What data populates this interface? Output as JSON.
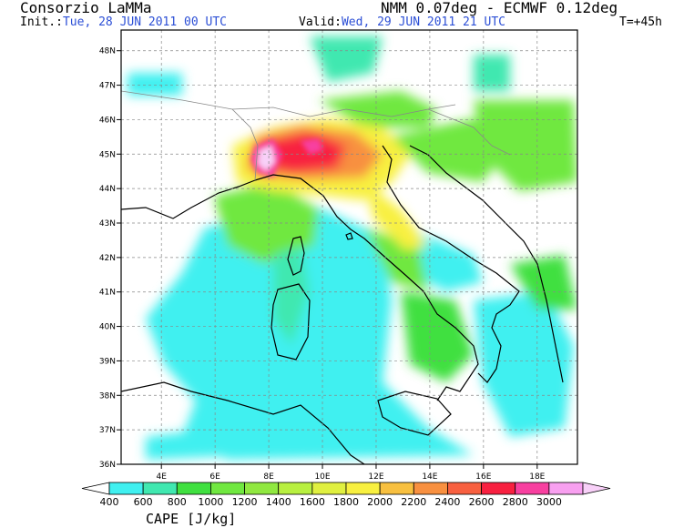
{
  "header": {
    "agency": "Consorzio LaMMa",
    "model": "NMM 0.07deg - ECMWF 0.12deg",
    "init_label": "Init.:",
    "init_value": "Tue, 28 JUN 2011  00 UTC",
    "valid_label": "Valid:",
    "valid_value": "Wed, 29 JUN 2011  21 UTC",
    "lead_time": "T=+45h"
  },
  "map": {
    "lon_range": [
      2.5,
      19.5
    ],
    "lat_range": [
      36,
      48.6
    ],
    "lon_ticks": [
      "4E",
      "6E",
      "8E",
      "10E",
      "12E",
      "14E",
      "16E",
      "18E"
    ],
    "lat_ticks": [
      "36N",
      "37N",
      "38N",
      "39N",
      "40N",
      "41N",
      "42N",
      "43N",
      "44N",
      "45N",
      "46N",
      "47N",
      "48N"
    ],
    "grid": true
  },
  "colorbar": {
    "labels": [
      "400",
      "600",
      "800",
      "1000",
      "1200",
      "1400",
      "1600",
      "1800",
      "2000",
      "2200",
      "2400",
      "2600",
      "2800",
      "3000"
    ],
    "colors": [
      "#ffffff",
      "#40f0f0",
      "#40e8b0",
      "#40e040",
      "#70e840",
      "#90e840",
      "#b8f040",
      "#e0f040",
      "#f8f040",
      "#f8c040",
      "#f89040",
      "#f86040",
      "#f82040",
      "#f840a0",
      "#f8a0f0",
      "#f8d0f8"
    ],
    "title": "CAPE [J/kg]"
  }
}
